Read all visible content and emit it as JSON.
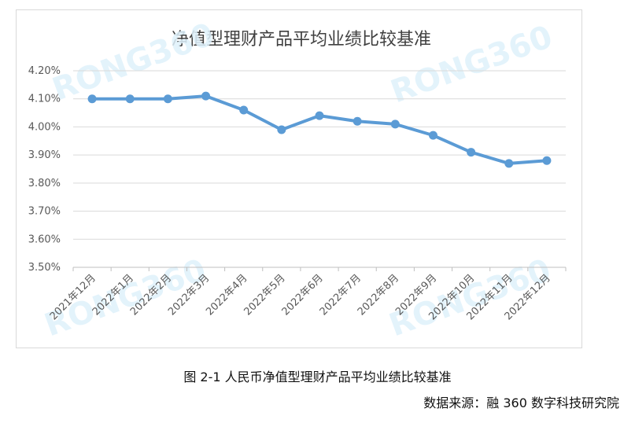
{
  "chart_data": {
    "type": "line",
    "title": "净值型理财产品平均业绩比较基准",
    "categories": [
      "2021年12月",
      "2022年1月",
      "2022年2月",
      "2022年3月",
      "2022年4月",
      "2022年5月",
      "2022年6月",
      "2022年7月",
      "2022年8月",
      "2022年9月",
      "2022年10月",
      "2022年11月",
      "2022年12月"
    ],
    "values": [
      4.1,
      4.1,
      4.1,
      4.11,
      4.06,
      3.99,
      4.04,
      4.02,
      4.01,
      3.97,
      3.91,
      3.87,
      3.88
    ],
    "ylim": [
      3.5,
      4.2
    ],
    "yticks": [
      "3.50%",
      "3.60%",
      "3.70%",
      "3.80%",
      "3.90%",
      "4.00%",
      "4.10%",
      "4.20%"
    ],
    "grid": true,
    "line_color": "#5b9bd5"
  },
  "watermark": "RONG360",
  "caption": "图 2-1 人民币净值型理财产品平均业绩比较基准",
  "source": "数据来源：融 360 数字科技研究院"
}
